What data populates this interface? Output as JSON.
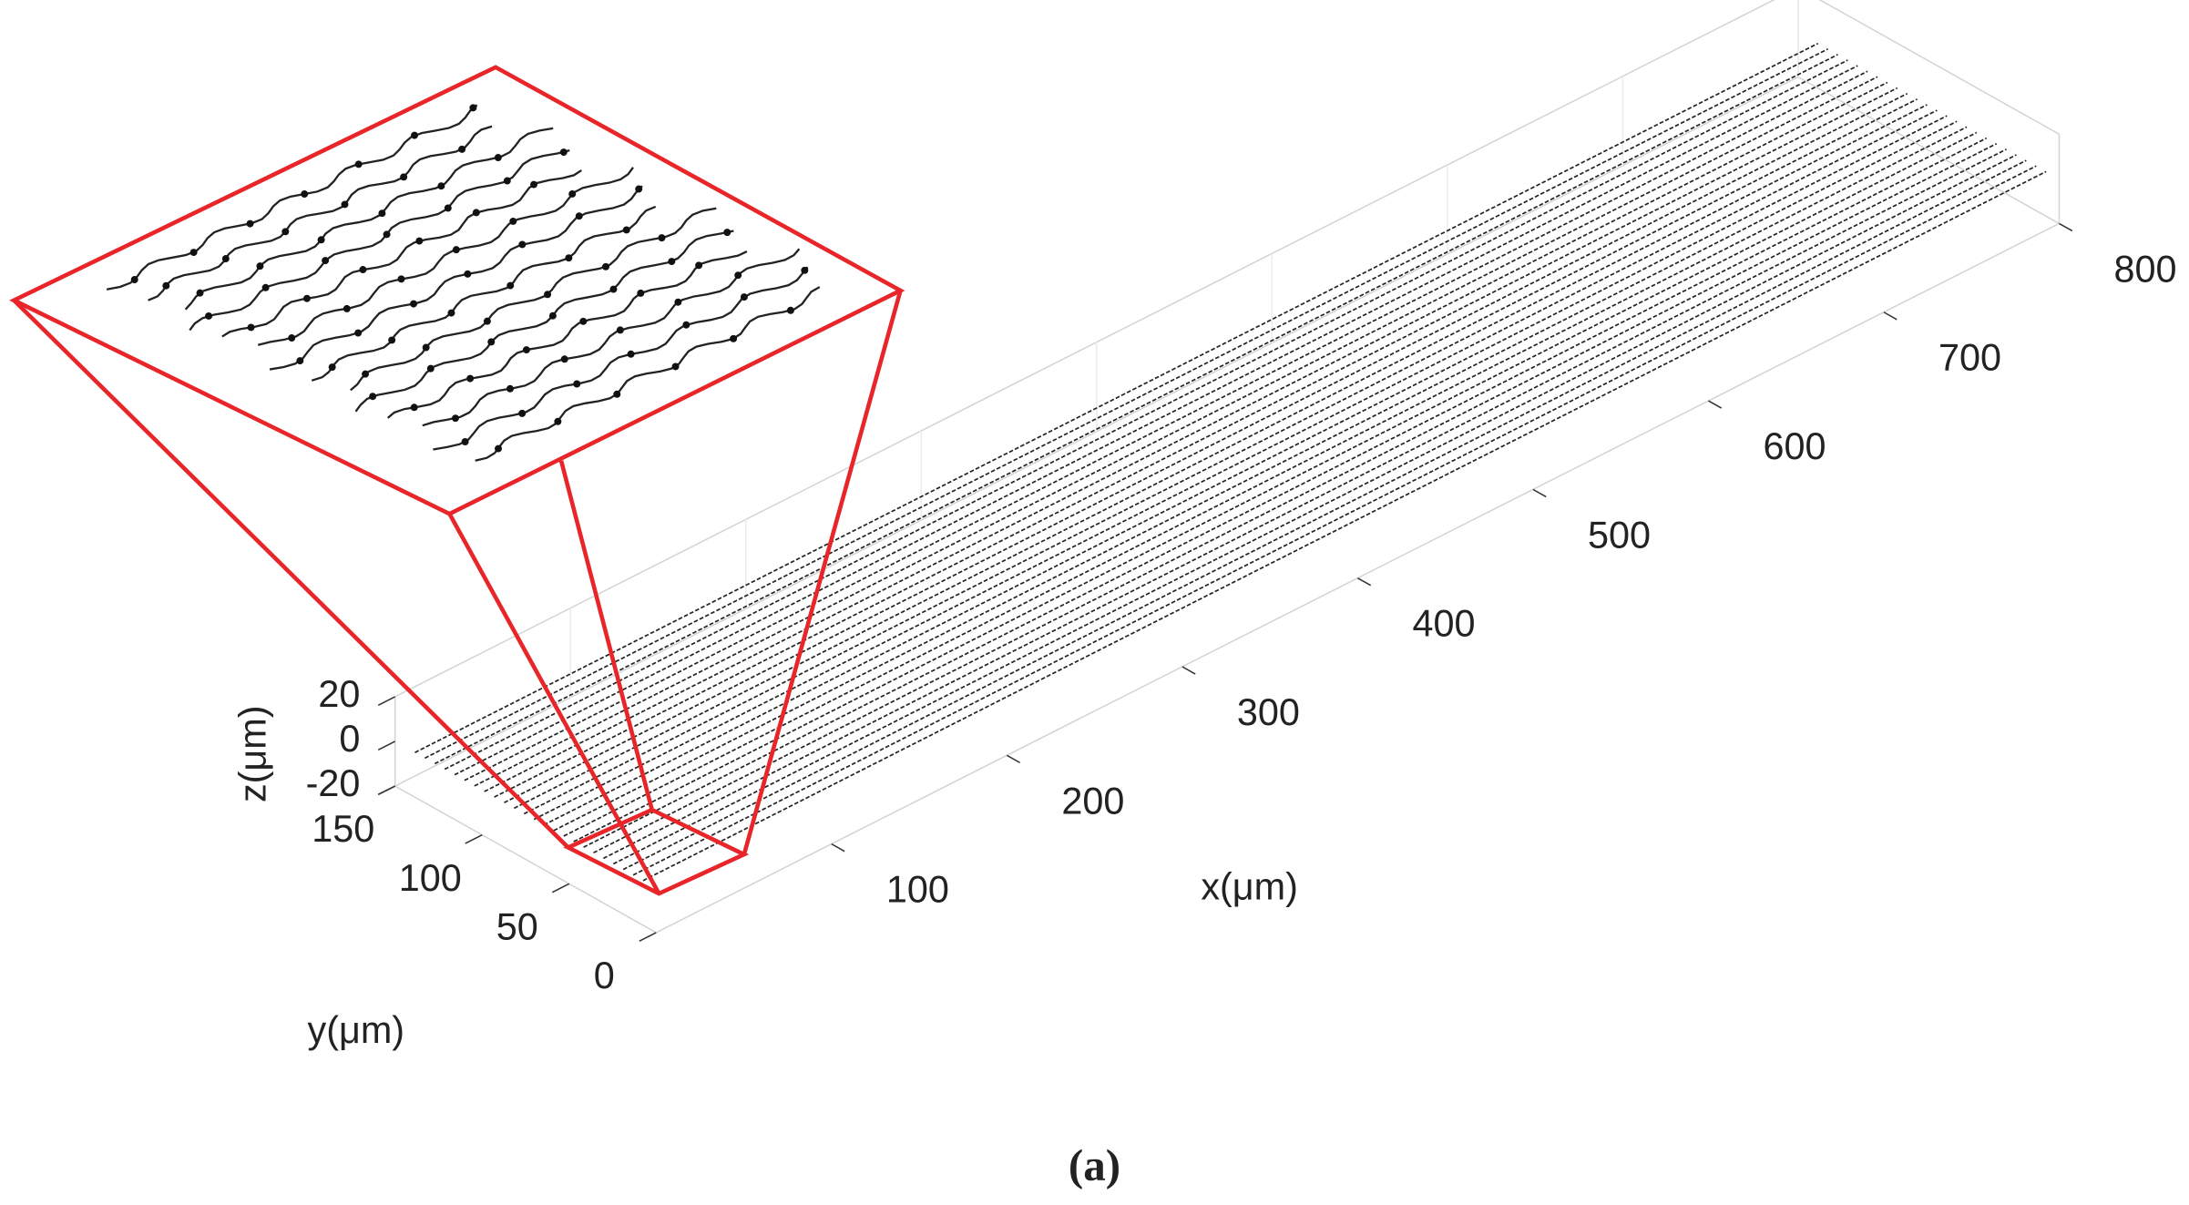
{
  "chart_data": {
    "type": "line3d",
    "xlabel": "x(μm)",
    "ylabel": "y(μm)",
    "zlabel": "z(μm)",
    "xlim": [
      0,
      800
    ],
    "ylim": [
      0,
      150
    ],
    "zlim": [
      -20,
      20
    ],
    "xticks": [
      100,
      200,
      300,
      400,
      500,
      600,
      700,
      800
    ],
    "yticks": [
      0,
      50,
      100,
      150
    ],
    "zticks": [
      -20,
      0,
      20
    ]
  },
  "caption": "(a)"
}
